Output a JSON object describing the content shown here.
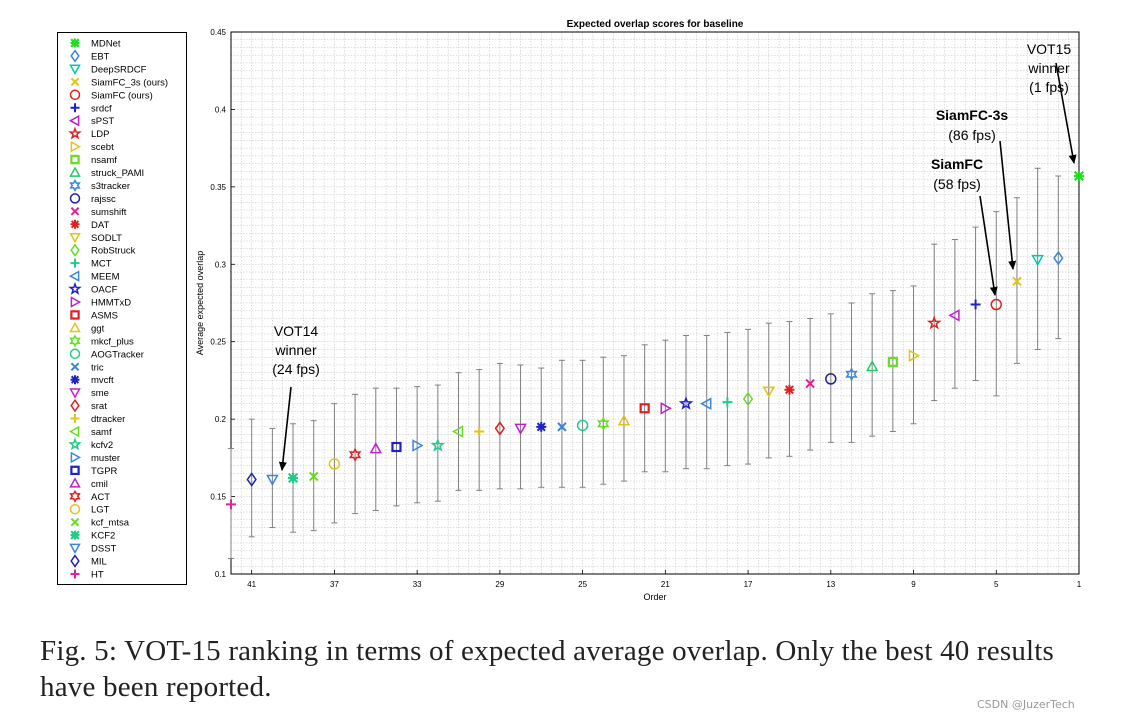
{
  "chart_data": {
    "type": "scatter",
    "title": "Expected overlap scores for baseline",
    "xlabel": "Order",
    "ylabel": "Average expected overlap",
    "xlim": [
      42,
      1
    ],
    "ylim": [
      0.1,
      0.45
    ],
    "xticks": [
      41,
      37,
      33,
      29,
      25,
      21,
      17,
      13,
      9,
      5,
      1
    ],
    "yticks": [
      0.1,
      0.15,
      0.2,
      0.25,
      0.3,
      0.35,
      0.4,
      0.45
    ],
    "ytick_labels": [
      "0.1",
      "0.15",
      "0.2",
      "0.25",
      "0.3",
      "0.35",
      "0.4",
      "0.45"
    ],
    "grid": true,
    "legend_position": "outside-left",
    "points": [
      {
        "name": "MDNet",
        "rank": 1,
        "value": 0.357,
        "lo": 0.357,
        "hi": 0.357,
        "color": "#22dd22",
        "marker": "star6"
      },
      {
        "name": "EBT",
        "rank": 2,
        "value": 0.304,
        "lo": 0.252,
        "hi": 0.357,
        "color": "#3a86d8",
        "marker": "diamond"
      },
      {
        "name": "DeepSRDCF",
        "rank": 3,
        "value": 0.303,
        "lo": 0.245,
        "hi": 0.362,
        "color": "#00c8b0",
        "marker": "tri-down"
      },
      {
        "name": "SiamFC_3s (ours)",
        "rank": 4,
        "value": 0.289,
        "lo": 0.236,
        "hi": 0.343,
        "color": "#e0c418",
        "marker": "x"
      },
      {
        "name": "SiamFC (ours)",
        "rank": 5,
        "value": 0.274,
        "lo": 0.215,
        "hi": 0.334,
        "color": "#e02020",
        "marker": "circle"
      },
      {
        "name": "srdcf",
        "rank": 6,
        "value": 0.274,
        "lo": 0.225,
        "hi": 0.324,
        "color": "#2020c8",
        "marker": "plus"
      },
      {
        "name": "sPST",
        "rank": 7,
        "value": 0.267,
        "lo": 0.22,
        "hi": 0.316,
        "color": "#c020c8",
        "marker": "tri-left"
      },
      {
        "name": "LDP",
        "rank": 8,
        "value": 0.262,
        "lo": 0.212,
        "hi": 0.313,
        "color": "#e02020",
        "marker": "pentagram"
      },
      {
        "name": "scebt",
        "rank": 9,
        "value": 0.241,
        "lo": 0.197,
        "hi": 0.286,
        "color": "#e0c418",
        "marker": "tri-right"
      },
      {
        "name": "nsamf",
        "rank": 10,
        "value": 0.237,
        "lo": 0.192,
        "hi": 0.283,
        "color": "#66dd22",
        "marker": "square"
      },
      {
        "name": "struck_PAMI",
        "rank": 11,
        "value": 0.234,
        "lo": 0.189,
        "hi": 0.281,
        "color": "#22cc66",
        "marker": "tri-up"
      },
      {
        "name": "s3tracker",
        "rank": 12,
        "value": 0.229,
        "lo": 0.185,
        "hi": 0.275,
        "color": "#3a86d8",
        "marker": "hexagram"
      },
      {
        "name": "rajssc",
        "rank": 13,
        "value": 0.226,
        "lo": 0.185,
        "hi": 0.268,
        "color": "#2020a0",
        "marker": "circle"
      },
      {
        "name": "sumshift",
        "rank": 14,
        "value": 0.223,
        "lo": 0.18,
        "hi": 0.265,
        "color": "#e020a0",
        "marker": "x"
      },
      {
        "name": "DAT",
        "rank": 15,
        "value": 0.219,
        "lo": 0.176,
        "hi": 0.263,
        "color": "#e02020",
        "marker": "asterisk"
      },
      {
        "name": "SODLT",
        "rank": 16,
        "value": 0.218,
        "lo": 0.175,
        "hi": 0.262,
        "color": "#e0c418",
        "marker": "tri-down"
      },
      {
        "name": "RobStruck",
        "rank": 17,
        "value": 0.213,
        "lo": 0.171,
        "hi": 0.258,
        "color": "#66dd22",
        "marker": "diamond"
      },
      {
        "name": "MCT",
        "rank": 18,
        "value": 0.211,
        "lo": 0.17,
        "hi": 0.256,
        "color": "#22cc88",
        "marker": "plus"
      },
      {
        "name": "MEEM",
        "rank": 19,
        "value": 0.21,
        "lo": 0.168,
        "hi": 0.254,
        "color": "#3a86d8",
        "marker": "tri-left"
      },
      {
        "name": "OACF",
        "rank": 20,
        "value": 0.21,
        "lo": 0.168,
        "hi": 0.254,
        "color": "#2020c8",
        "marker": "pentagram"
      },
      {
        "name": "HMMTxD",
        "rank": 21,
        "value": 0.207,
        "lo": 0.166,
        "hi": 0.251,
        "color": "#c020c8",
        "marker": "tri-right"
      },
      {
        "name": "ASMS",
        "rank": 22,
        "value": 0.207,
        "lo": 0.166,
        "hi": 0.248,
        "color": "#e02020",
        "marker": "square"
      },
      {
        "name": "ggt",
        "rank": 23,
        "value": 0.199,
        "lo": 0.16,
        "hi": 0.241,
        "color": "#e0c418",
        "marker": "tri-up"
      },
      {
        "name": "mkcf_plus",
        "rank": 24,
        "value": 0.197,
        "lo": 0.158,
        "hi": 0.24,
        "color": "#66dd22",
        "marker": "hexagram"
      },
      {
        "name": "AOGTracker",
        "rank": 25,
        "value": 0.196,
        "lo": 0.156,
        "hi": 0.238,
        "color": "#22cc88",
        "marker": "circle"
      },
      {
        "name": "tric",
        "rank": 26,
        "value": 0.195,
        "lo": 0.156,
        "hi": 0.238,
        "color": "#3a86d8",
        "marker": "x"
      },
      {
        "name": "mvcft",
        "rank": 27,
        "value": 0.195,
        "lo": 0.156,
        "hi": 0.233,
        "color": "#2020c8",
        "marker": "asterisk"
      },
      {
        "name": "sme",
        "rank": 28,
        "value": 0.194,
        "lo": 0.155,
        "hi": 0.235,
        "color": "#c020c8",
        "marker": "tri-down"
      },
      {
        "name": "srat",
        "rank": 29,
        "value": 0.194,
        "lo": 0.155,
        "hi": 0.236,
        "color": "#e02020",
        "marker": "diamond"
      },
      {
        "name": "dtracker",
        "rank": 30,
        "value": 0.192,
        "lo": 0.154,
        "hi": 0.232,
        "color": "#e0c418",
        "marker": "plus"
      },
      {
        "name": "samf",
        "rank": 31,
        "value": 0.192,
        "lo": 0.154,
        "hi": 0.23,
        "color": "#66dd22",
        "marker": "tri-left"
      },
      {
        "name": "kcfv2",
        "rank": 32,
        "value": 0.183,
        "lo": 0.147,
        "hi": 0.222,
        "color": "#22cc88",
        "marker": "pentagram"
      },
      {
        "name": "muster",
        "rank": 33,
        "value": 0.183,
        "lo": 0.146,
        "hi": 0.221,
        "color": "#3a86d8",
        "marker": "tri-right"
      },
      {
        "name": "TGPR",
        "rank": 34,
        "value": 0.182,
        "lo": 0.144,
        "hi": 0.22,
        "color": "#2020c8",
        "marker": "square"
      },
      {
        "name": "cmil",
        "rank": 35,
        "value": 0.181,
        "lo": 0.141,
        "hi": 0.22,
        "color": "#c020c8",
        "marker": "tri-up"
      },
      {
        "name": "ACT",
        "rank": 36,
        "value": 0.177,
        "lo": 0.139,
        "hi": 0.216,
        "color": "#e02020",
        "marker": "hexagram"
      },
      {
        "name": "LGT",
        "rank": 37,
        "value": 0.171,
        "lo": 0.133,
        "hi": 0.21,
        "color": "#e0c418",
        "marker": "circle"
      },
      {
        "name": "kcf_mtsa",
        "rank": 38,
        "value": 0.163,
        "lo": 0.128,
        "hi": 0.199,
        "color": "#66dd22",
        "marker": "x"
      },
      {
        "name": "KCF2",
        "rank": 39,
        "value": 0.162,
        "lo": 0.127,
        "hi": 0.197,
        "color": "#22cc88",
        "marker": "star6"
      },
      {
        "name": "DSST",
        "rank": 40,
        "value": 0.161,
        "lo": 0.13,
        "hi": 0.194,
        "color": "#3a86d8",
        "marker": "tri-down"
      },
      {
        "name": "MIL",
        "rank": 41,
        "value": 0.161,
        "lo": 0.124,
        "hi": 0.2,
        "color": "#2020a0",
        "marker": "diamond"
      },
      {
        "name": "HT",
        "rank": 42,
        "value": 0.145,
        "lo": 0.11,
        "hi": 0.181,
        "color": "#e020a0",
        "marker": "plus"
      }
    ],
    "annotations": [
      {
        "lines": [
          "VOT15",
          "winner",
          "(1 fps)"
        ],
        "bold": false,
        "target_rank": 1,
        "target_value": 0.357
      },
      {
        "lines": [
          "SiamFC-3s",
          "(86 fps)"
        ],
        "bold_first": true,
        "target_rank": 4,
        "target_value": 0.289
      },
      {
        "lines": [
          "SiamFC",
          "(58 fps)"
        ],
        "bold_first": true,
        "target_rank": 5,
        "target_value": 0.274
      },
      {
        "lines": [
          "VOT14",
          "winner",
          "(24 fps)"
        ],
        "bold": false,
        "target_rank": 40,
        "target_value": 0.161
      }
    ]
  },
  "caption": "Fig. 5: VOT-15 ranking in terms of expected average overlap. Only the best 40 results have been reported.",
  "watermark": "CSDN @JuzerTech"
}
